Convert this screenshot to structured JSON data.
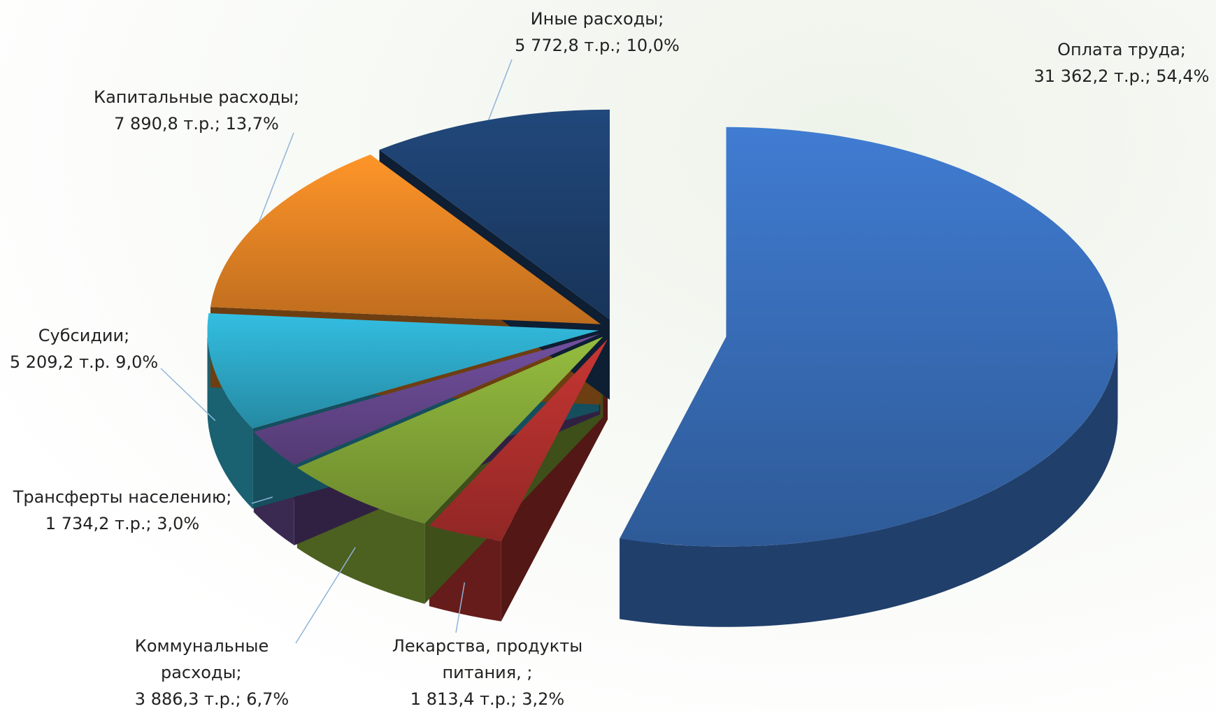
{
  "chart_data": {
    "type": "pie3d",
    "categories": [
      "Оплата труда;",
      "Лекарства, продукты питания, ;",
      "Коммунальные расходы;",
      "Трансферты населению;",
      "Субсидии;",
      "Капитальные расходы;",
      "Иные расходы;"
    ],
    "values": [
      31362.2,
      1813.4,
      3886.3,
      1734.2,
      5209.2,
      7890.8,
      5772.8
    ],
    "value_labels": [
      "31 362,2 т.р.; 54,4%",
      "1 813,4 т.р.; 3,2%",
      "3 886,3 т.р.; 6,7%",
      "1 734,2 т.р.; 3,0%",
      "5 209,2 т.р. 9,0%",
      "7 890,8 т.р.; 13,7%",
      "5 772,8 т.р.; 10,0%"
    ],
    "colors": [
      "#3b73c2",
      "#b8322f",
      "#8aaf3a",
      "#6a4a93",
      "#2fb0d0",
      "#f28a26",
      "#1f4372"
    ]
  }
}
